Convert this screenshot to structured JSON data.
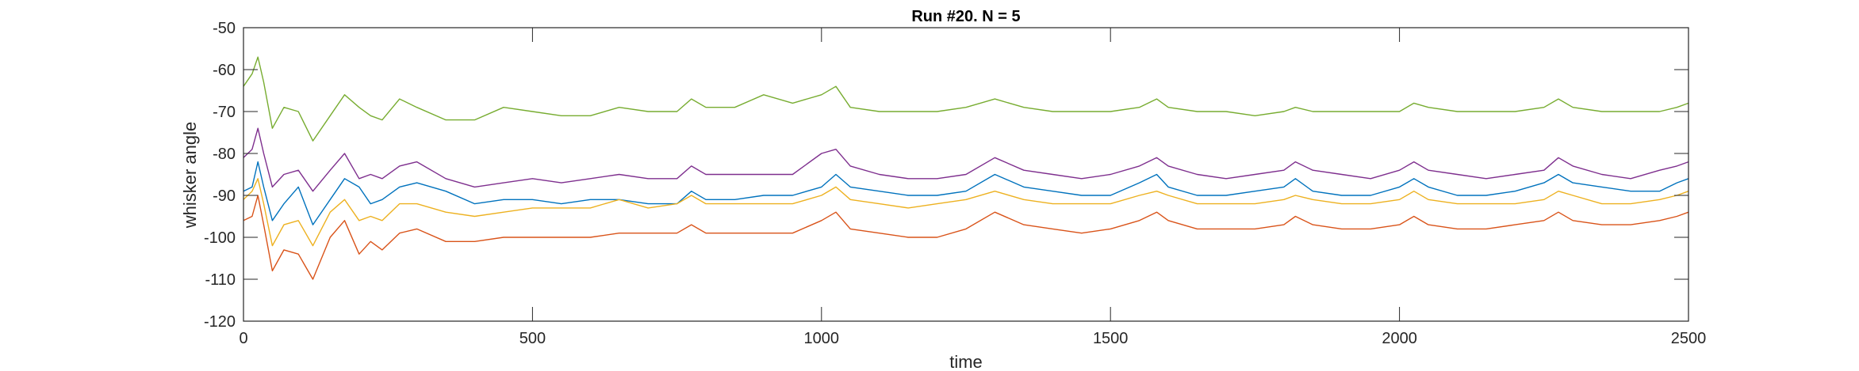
{
  "chart_data": {
    "type": "line",
    "title": "Run #20. N = 5",
    "xlabel": "time",
    "ylabel": "whisker angle",
    "xlim": [
      0,
      2500
    ],
    "ylim": [
      -120,
      -50
    ],
    "xticks": [
      0,
      500,
      1000,
      1500,
      2000,
      2500
    ],
    "yticks": [
      -50,
      -60,
      -70,
      -80,
      -90,
      -100,
      -110,
      -120
    ],
    "xtick_labels": [
      "0",
      "500",
      "1000",
      "1500",
      "2000",
      "2500"
    ],
    "ytick_labels": [
      "-50",
      "-60",
      "-70",
      "-80",
      "-90",
      "-100",
      "-110",
      "-120"
    ],
    "grid": false,
    "legend": "none",
    "series": [
      {
        "color": "#0072BD",
        "x": [
          0,
          15,
          25,
          35,
          50,
          70,
          95,
          120,
          150,
          175,
          200,
          220,
          240,
          270,
          300,
          350,
          400,
          450,
          500,
          550,
          600,
          650,
          700,
          750,
          775,
          800,
          850,
          900,
          950,
          1000,
          1025,
          1050,
          1100,
          1150,
          1200,
          1250,
          1300,
          1350,
          1400,
          1450,
          1500,
          1550,
          1580,
          1600,
          1650,
          1700,
          1750,
          1800,
          1820,
          1850,
          1900,
          1950,
          2000,
          2025,
          2050,
          2100,
          2150,
          2200,
          2250,
          2275,
          2300,
          2350,
          2400,
          2450,
          2480,
          2500
        ],
        "y": [
          -89,
          -88,
          -82,
          -88,
          -96,
          -92,
          -88,
          -97,
          -91,
          -86,
          -88,
          -92,
          -91,
          -88,
          -87,
          -89,
          -92,
          -91,
          -91,
          -92,
          -91,
          -91,
          -92,
          -92,
          -89,
          -91,
          -91,
          -90,
          -90,
          -88,
          -85,
          -88,
          -89,
          -90,
          -90,
          -89,
          -85,
          -88,
          -89,
          -90,
          -90,
          -87,
          -85,
          -88,
          -90,
          -90,
          -89,
          -88,
          -86,
          -89,
          -90,
          -90,
          -88,
          -86,
          -88,
          -90,
          -90,
          -89,
          -87,
          -85,
          -87,
          -88,
          -89,
          -89,
          -87,
          -86
        ]
      },
      {
        "color": "#D95319",
        "x": [
          0,
          15,
          25,
          35,
          50,
          70,
          95,
          120,
          150,
          175,
          200,
          220,
          240,
          270,
          300,
          350,
          400,
          450,
          500,
          550,
          600,
          650,
          700,
          750,
          775,
          800,
          850,
          900,
          950,
          1000,
          1025,
          1050,
          1100,
          1150,
          1200,
          1250,
          1300,
          1350,
          1400,
          1450,
          1500,
          1550,
          1580,
          1600,
          1650,
          1700,
          1750,
          1800,
          1820,
          1850,
          1900,
          1950,
          2000,
          2025,
          2050,
          2100,
          2150,
          2200,
          2250,
          2275,
          2300,
          2350,
          2400,
          2450,
          2480,
          2500
        ],
        "y": [
          -96,
          -95,
          -90,
          -97,
          -108,
          -103,
          -104,
          -110,
          -100,
          -96,
          -104,
          -101,
          -103,
          -99,
          -98,
          -101,
          -101,
          -100,
          -100,
          -100,
          -100,
          -99,
          -99,
          -99,
          -97,
          -99,
          -99,
          -99,
          -99,
          -96,
          -94,
          -98,
          -99,
          -100,
          -100,
          -98,
          -94,
          -97,
          -98,
          -99,
          -98,
          -96,
          -94,
          -96,
          -98,
          -98,
          -98,
          -97,
          -95,
          -97,
          -98,
          -98,
          -97,
          -95,
          -97,
          -98,
          -98,
          -97,
          -96,
          -94,
          -96,
          -97,
          -97,
          -96,
          -95,
          -94
        ]
      },
      {
        "color": "#EDB120",
        "x": [
          0,
          15,
          25,
          35,
          50,
          70,
          95,
          120,
          150,
          175,
          200,
          220,
          240,
          270,
          300,
          350,
          400,
          450,
          500,
          550,
          600,
          650,
          700,
          750,
          775,
          800,
          850,
          900,
          950,
          1000,
          1025,
          1050,
          1100,
          1150,
          1200,
          1250,
          1300,
          1350,
          1400,
          1450,
          1500,
          1550,
          1580,
          1600,
          1650,
          1700,
          1750,
          1800,
          1820,
          1850,
          1900,
          1950,
          2000,
          2025,
          2050,
          2100,
          2150,
          2200,
          2250,
          2275,
          2300,
          2350,
          2400,
          2450,
          2480,
          2500
        ],
        "y": [
          -91,
          -89,
          -86,
          -92,
          -102,
          -97,
          -96,
          -102,
          -94,
          -91,
          -96,
          -95,
          -96,
          -92,
          -92,
          -94,
          -95,
          -94,
          -93,
          -93,
          -93,
          -91,
          -93,
          -92,
          -90,
          -92,
          -92,
          -92,
          -92,
          -90,
          -88,
          -91,
          -92,
          -93,
          -92,
          -91,
          -89,
          -91,
          -92,
          -92,
          -92,
          -90,
          -89,
          -90,
          -92,
          -92,
          -92,
          -91,
          -90,
          -91,
          -92,
          -92,
          -91,
          -89,
          -91,
          -92,
          -92,
          -92,
          -91,
          -89,
          -90,
          -92,
          -92,
          -91,
          -90,
          -89
        ]
      },
      {
        "color": "#7E2F8E",
        "x": [
          0,
          15,
          25,
          35,
          50,
          70,
          95,
          120,
          150,
          175,
          200,
          220,
          240,
          270,
          300,
          350,
          400,
          450,
          500,
          550,
          600,
          650,
          700,
          750,
          775,
          800,
          850,
          900,
          950,
          1000,
          1025,
          1050,
          1100,
          1150,
          1200,
          1250,
          1300,
          1350,
          1400,
          1450,
          1500,
          1550,
          1580,
          1600,
          1650,
          1700,
          1750,
          1800,
          1820,
          1850,
          1900,
          1950,
          2000,
          2025,
          2050,
          2100,
          2150,
          2200,
          2250,
          2275,
          2300,
          2350,
          2400,
          2450,
          2480,
          2500
        ],
        "y": [
          -81,
          -79,
          -74,
          -80,
          -88,
          -85,
          -84,
          -89,
          -84,
          -80,
          -86,
          -85,
          -86,
          -83,
          -82,
          -86,
          -88,
          -87,
          -86,
          -87,
          -86,
          -85,
          -86,
          -86,
          -83,
          -85,
          -85,
          -85,
          -85,
          -80,
          -79,
          -83,
          -85,
          -86,
          -86,
          -85,
          -81,
          -84,
          -85,
          -86,
          -85,
          -83,
          -81,
          -83,
          -85,
          -86,
          -85,
          -84,
          -82,
          -84,
          -85,
          -86,
          -84,
          -82,
          -84,
          -85,
          -86,
          -85,
          -84,
          -81,
          -83,
          -85,
          -86,
          -84,
          -83,
          -82
        ]
      },
      {
        "color": "#77AC30",
        "x": [
          0,
          15,
          25,
          35,
          50,
          70,
          95,
          120,
          150,
          175,
          200,
          220,
          240,
          270,
          300,
          350,
          400,
          450,
          500,
          550,
          600,
          650,
          700,
          750,
          775,
          800,
          850,
          900,
          950,
          1000,
          1025,
          1050,
          1100,
          1150,
          1200,
          1250,
          1300,
          1350,
          1400,
          1450,
          1500,
          1550,
          1580,
          1600,
          1650,
          1700,
          1750,
          1800,
          1820,
          1850,
          1900,
          1950,
          2000,
          2025,
          2050,
          2100,
          2150,
          2200,
          2250,
          2275,
          2300,
          2350,
          2400,
          2450,
          2480,
          2500
        ],
        "y": [
          -64,
          -61,
          -57,
          -63,
          -74,
          -69,
          -70,
          -77,
          -71,
          -66,
          -69,
          -71,
          -72,
          -67,
          -69,
          -72,
          -72,
          -69,
          -70,
          -71,
          -71,
          -69,
          -70,
          -70,
          -67,
          -69,
          -69,
          -66,
          -68,
          -66,
          -64,
          -69,
          -70,
          -70,
          -70,
          -69,
          -67,
          -69,
          -70,
          -70,
          -70,
          -69,
          -67,
          -69,
          -70,
          -70,
          -71,
          -70,
          -69,
          -70,
          -70,
          -70,
          -70,
          -68,
          -69,
          -70,
          -70,
          -70,
          -69,
          -67,
          -69,
          -70,
          -70,
          -70,
          -69,
          -68
        ]
      }
    ]
  }
}
